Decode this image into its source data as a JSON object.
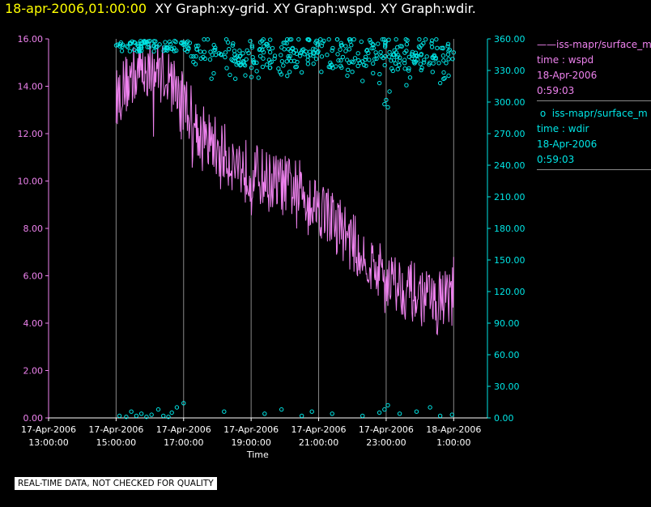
{
  "title": {
    "timestamp": "18-apr-2006,01:00:00",
    "graphs": "XY Graph:xy-grid.  XY Graph:wspd.  XY Graph:wdir."
  },
  "legend": [
    {
      "label": "iss-mapr/surface_m",
      "var": "time : wspd",
      "date": "18-Apr-2006",
      "time": "0:59:03",
      "color": "#ee82ee"
    },
    {
      "label": "iss-mapr/surface_m",
      "var": "time : wdir",
      "date": "18-Apr-2006",
      "time": "0:59:03",
      "color": "#00e5e5"
    }
  ],
  "disclaimer": "REAL-TIME DATA, NOT CHECKED FOR QUALITY",
  "chart_data": {
    "type": "line",
    "xlabel": "Time",
    "x_range_hours": [
      -1,
      12.0
    ],
    "x_ticks": [
      {
        "hour": -1,
        "date": "17-Apr-2006",
        "time": "13:00:00"
      },
      {
        "hour": 1,
        "date": "17-Apr-2006",
        "time": "15:00:00"
      },
      {
        "hour": 3,
        "date": "17-Apr-2006",
        "time": "17:00:00"
      },
      {
        "hour": 5,
        "date": "17-Apr-2006",
        "time": "19:00:00"
      },
      {
        "hour": 7,
        "date": "17-Apr-2006",
        "time": "21:00:00"
      },
      {
        "hour": 9,
        "date": "17-Apr-2006",
        "time": "23:00:00"
      },
      {
        "hour": 11,
        "date": "18-Apr-2006",
        "time": "1:00:00"
      }
    ],
    "grid_x_hours": [
      1,
      3,
      5,
      7,
      9,
      11
    ],
    "y_left": {
      "range": [
        0,
        16
      ],
      "ticks": [
        "0.00",
        "2.00",
        "4.00",
        "6.00",
        "8.00",
        "10.00",
        "12.00",
        "14.00",
        "16.00"
      ],
      "color": "#ee82ee"
    },
    "y_right": {
      "range": [
        0,
        360
      ],
      "ticks": [
        "0.00",
        "30.00",
        "60.00",
        "90.00",
        "120.00",
        "150.00",
        "180.00",
        "210.00",
        "240.00",
        "270.00",
        "300.00",
        "330.00",
        "360.00"
      ],
      "color": "#00e5e5"
    },
    "series": [
      {
        "name": "wspd",
        "axis": "left",
        "style": "line",
        "color": "#ee82ee",
        "x_start_hour": 1.0,
        "x_end_hour": 11.0,
        "trend": [
          [
            1.0,
            13.5
          ],
          [
            1.5,
            14.5
          ],
          [
            2.0,
            14.8
          ],
          [
            2.5,
            14.5
          ],
          [
            3.0,
            13.5
          ],
          [
            3.5,
            12.0
          ],
          [
            4.5,
            10.8
          ],
          [
            5.5,
            10.0
          ],
          [
            6.5,
            9.6
          ],
          [
            7.5,
            8.3
          ],
          [
            8.5,
            6.5
          ],
          [
            9.5,
            5.5
          ],
          [
            10.5,
            4.8
          ],
          [
            11.0,
            5.5
          ]
        ],
        "noise_amplitude": 1.3,
        "samples": 560
      },
      {
        "name": "wdir",
        "axis": "right",
        "style": "scatter",
        "color": "#00e5e5",
        "x_start_hour": 1.0,
        "x_end_hour": 11.0,
        "main_band": {
          "center": 345,
          "spread": 14,
          "samples": 430
        },
        "near_zero": [
          [
            1.1,
            2
          ],
          [
            1.3,
            1
          ],
          [
            1.45,
            6
          ],
          [
            1.6,
            2
          ],
          [
            1.75,
            4
          ],
          [
            1.9,
            1
          ],
          [
            2.05,
            3
          ],
          [
            2.25,
            8
          ],
          [
            2.4,
            2
          ],
          [
            2.55,
            1
          ],
          [
            2.65,
            5
          ],
          [
            2.8,
            10
          ],
          [
            3.0,
            14
          ],
          [
            4.2,
            6
          ],
          [
            5.4,
            4
          ],
          [
            5.9,
            8
          ],
          [
            6.5,
            2
          ],
          [
            6.8,
            6
          ],
          [
            7.4,
            4
          ],
          [
            8.3,
            2
          ],
          [
            8.8,
            5
          ],
          [
            8.95,
            8
          ],
          [
            9.05,
            12
          ],
          [
            9.4,
            4
          ],
          [
            9.9,
            6
          ],
          [
            10.3,
            10
          ],
          [
            10.6,
            2
          ],
          [
            10.95,
            3
          ]
        ],
        "low_outliers": [
          [
            8.95,
            298
          ],
          [
            9.0,
            302
          ],
          [
            9.05,
            295
          ],
          [
            9.1,
            310
          ],
          [
            8.8,
            318
          ],
          [
            10.6,
            318
          ],
          [
            10.7,
            322
          ],
          [
            10.85,
            325
          ],
          [
            9.6,
            316
          ],
          [
            8.3,
            320
          ]
        ]
      }
    ]
  }
}
